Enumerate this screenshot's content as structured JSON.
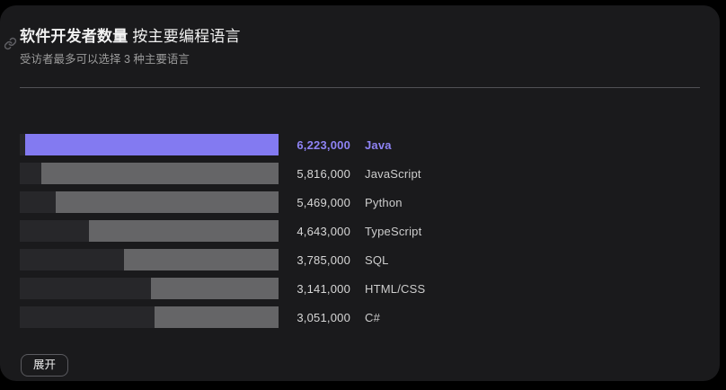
{
  "header": {
    "title_bold": "软件开发者数量",
    "title_rest": "按主要编程语言",
    "subtitle": "受访者最多可以选择 3 种主要语言"
  },
  "footer": {
    "expand_label": "展开"
  },
  "colors": {
    "page_bg": "#000000",
    "card_bg": "#1a1a1c",
    "accent_bar": "#837af1",
    "accent_text": "#8e83f4",
    "bar_gray": "#656567",
    "bar_track": "#27272a",
    "divider": "#515155"
  },
  "chart_data": {
    "type": "bar",
    "orientation": "horizontal",
    "title": "软件开发者数量 按主要编程语言",
    "subtitle": "受访者最多可以选择 3 种主要语言",
    "categories": [
      "Java",
      "JavaScript",
      "Python",
      "TypeScript",
      "SQL",
      "HTML/CSS",
      "C#"
    ],
    "values": [
      6223000,
      5816000,
      5469000,
      4643000,
      3785000,
      3141000,
      3051000
    ],
    "value_labels": [
      "6,223,000",
      "5,816,000",
      "5,469,000",
      "4,643,000",
      "3,785,000",
      "3,141,000",
      "3,051,000"
    ],
    "highlighted_index": 0,
    "xlim": [
      0,
      6350000
    ],
    "grid": false,
    "legend": false
  }
}
